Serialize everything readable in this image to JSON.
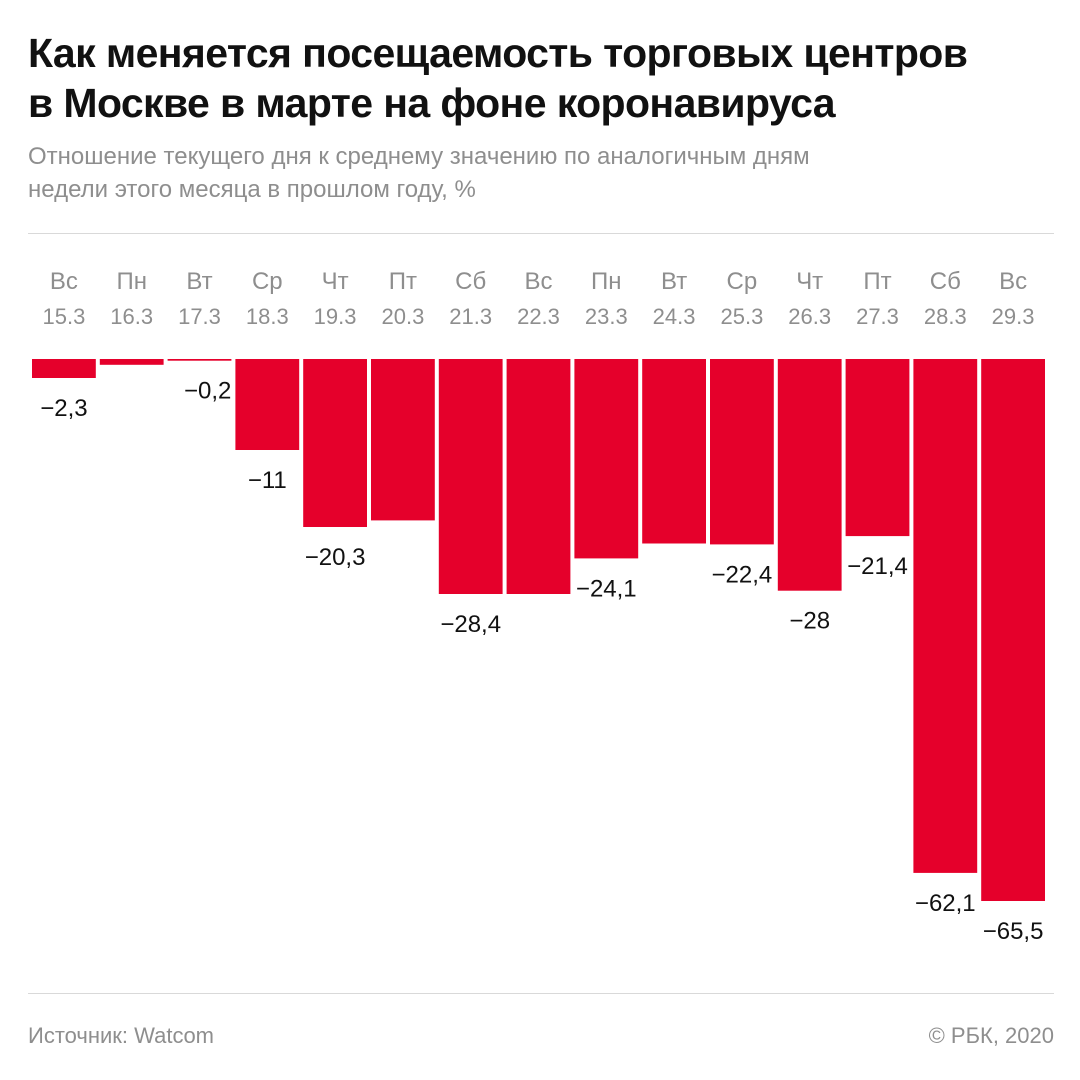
{
  "header": {
    "title_lines": [
      "Как меняется посещаемость торговых центров",
      "в Москве в марте на фоне коронавируса"
    ],
    "subtitle_lines": [
      "Отношение текущего дня к среднему значению по аналогичным дням",
      "недели этого месяца в прошлом году, %"
    ]
  },
  "footer": {
    "source": "Источник: Watcom",
    "copyright": "© РБК, 2020"
  },
  "colors": {
    "bar": "#e5002b",
    "label": "#111111",
    "axis_text": "#8e8e8e"
  },
  "chart_data": {
    "type": "bar",
    "categories": [
      {
        "day": "Вс",
        "date": "15.3"
      },
      {
        "day": "Пн",
        "date": "16.3"
      },
      {
        "day": "Вт",
        "date": "17.3"
      },
      {
        "day": "Ср",
        "date": "18.3"
      },
      {
        "day": "Чт",
        "date": "19.3"
      },
      {
        "day": "Пт",
        "date": "20.3"
      },
      {
        "day": "Сб",
        "date": "21.3"
      },
      {
        "day": "Вс",
        "date": "22.3"
      },
      {
        "day": "Пн",
        "date": "23.3"
      },
      {
        "day": "Вт",
        "date": "24.3"
      },
      {
        "day": "Ср",
        "date": "25.3"
      },
      {
        "day": "Чт",
        "date": "26.3"
      },
      {
        "day": "Пт",
        "date": "27.3"
      },
      {
        "day": "Сб",
        "date": "28.3"
      },
      {
        "day": "Вс",
        "date": "29.3"
      }
    ],
    "values": [
      -2.3,
      -0.7,
      -0.2,
      -11,
      -20.3,
      -19.5,
      -28.4,
      -28.4,
      -24.1,
      -22.3,
      -22.4,
      -28,
      -21.4,
      -62.1,
      -65.5
    ],
    "data_labels": [
      "−2,3",
      "",
      "−0,2",
      "−11",
      "−20,3",
      "",
      "−28,4",
      "",
      "−24,1",
      "",
      "−22,4",
      "−28",
      "−21,4",
      "−62,1",
      "−65,5"
    ],
    "ylim": [
      -65.5,
      0
    ],
    "x_axis_position": "top",
    "grid": false,
    "legend": "none"
  }
}
